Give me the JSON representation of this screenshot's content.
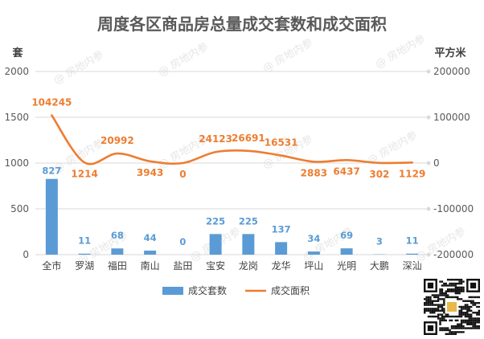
{
  "chart_data": {
    "type": "bar+line",
    "title": "周度各区商品房总量成交套数和成交面积",
    "categories": [
      "全市",
      "罗湖",
      "福田",
      "南山",
      "盐田",
      "宝安",
      "龙岗",
      "龙华",
      "坪山",
      "光明",
      "大鹏",
      "深汕"
    ],
    "left_axis": {
      "unit": "套",
      "ticks": [
        "0",
        "500",
        "1000",
        "1500",
        "2000"
      ],
      "range": [
        0,
        2000
      ]
    },
    "right_axis": {
      "unit": "平方米",
      "ticks": [
        "-200000",
        "-100000",
        "0",
        "100000",
        "200000"
      ],
      "range": [
        -200000,
        200000
      ]
    },
    "series": [
      {
        "name": "成交套数",
        "kind": "bar",
        "axis": "left",
        "color": "#5b9bd5",
        "values": [
          827,
          11,
          68,
          44,
          0,
          225,
          225,
          137,
          34,
          69,
          3,
          11
        ],
        "labels": [
          "827",
          "11",
          "68",
          "44",
          "0",
          "225",
          "225",
          "137",
          "34",
          "69",
          "3",
          "11"
        ]
      },
      {
        "name": "成交面积",
        "kind": "line",
        "axis": "right",
        "color": "#ed7d31",
        "values": [
          104245,
          1214,
          20992,
          3943,
          0,
          24123,
          26691,
          16531,
          2883,
          6437,
          302,
          1129
        ],
        "labels": [
          "104245",
          "1214",
          "20992",
          "3943",
          "0",
          "24123",
          "26691",
          "16531",
          "2883",
          "6437",
          "302",
          "1129"
        ]
      }
    ],
    "legend_position": "bottom",
    "grid": "horizontal"
  },
  "watermark": {
    "text": "房地内参"
  }
}
